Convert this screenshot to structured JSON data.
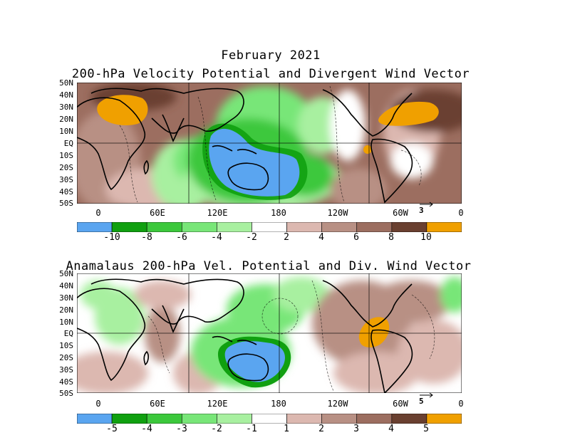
{
  "figure": {
    "title": "February 2021"
  },
  "panels": [
    {
      "title": "200-hPa Velocity Potential and Divergent Wind Vector",
      "lat_ticks": [
        "50N",
        "40N",
        "30N",
        "20N",
        "10N",
        "EQ",
        "10S",
        "20S",
        "30S",
        "40S",
        "50S"
      ],
      "lon_ticks": [
        "0",
        "60E",
        "120E",
        "180",
        "120W",
        "60W",
        "0"
      ],
      "reference_vector": "3",
      "colorbar": {
        "labels": [
          "-10",
          "-8",
          "-6",
          "-4",
          "-2",
          "2",
          "4",
          "6",
          "8",
          "10"
        ],
        "colors": [
          "#5aa5f0",
          "#10a010",
          "#3cc83c",
          "#78e678",
          "#a8f0a0",
          "#ffffff",
          "#dcb8b0",
          "#b89084",
          "#9c6e60",
          "#6a4030",
          "#f0a000"
        ]
      }
    },
    {
      "title": "Anamalaus 200-hPa Vel. Potential and Div. Wind Vector",
      "lat_ticks": [
        "50N",
        "40N",
        "30N",
        "20N",
        "10N",
        "EQ",
        "10S",
        "20S",
        "30S",
        "40S",
        "50S"
      ],
      "lon_ticks": [
        "0",
        "60E",
        "120E",
        "180",
        "120W",
        "60W",
        "0"
      ],
      "reference_vector": "5",
      "colorbar": {
        "labels": [
          "-5",
          "-4",
          "-3",
          "-2",
          "-1",
          "1",
          "2",
          "3",
          "4",
          "5"
        ],
        "colors": [
          "#5aa5f0",
          "#10a010",
          "#3cc83c",
          "#78e678",
          "#a8f0a0",
          "#ffffff",
          "#dcb8b0",
          "#b89084",
          "#9c6e60",
          "#6a4030",
          "#f0a000"
        ]
      }
    }
  ]
}
